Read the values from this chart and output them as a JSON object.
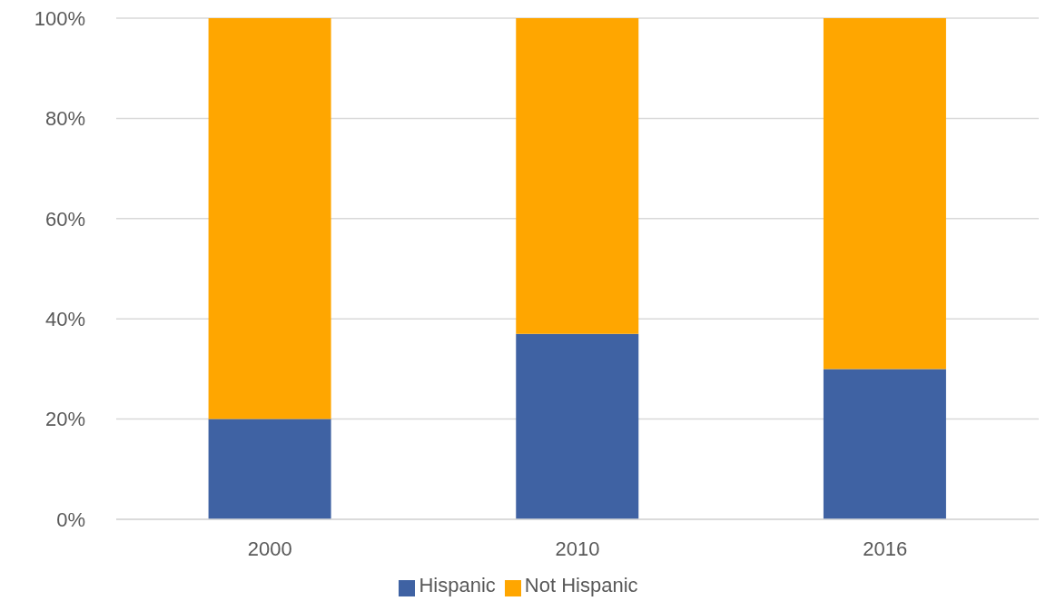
{
  "chart_data": {
    "type": "bar",
    "stacked": true,
    "categories": [
      "2000",
      "2010",
      "2016"
    ],
    "series": [
      {
        "name": "Hispanic",
        "color": "#3f62a3",
        "values": [
          20,
          37,
          30
        ]
      },
      {
        "name": "Not Hispanic",
        "color": "#ffa600",
        "values": [
          80,
          63,
          70
        ]
      }
    ],
    "ylim": [
      0,
      100
    ],
    "yticks": [
      {
        "value": 0,
        "label": "0%"
      },
      {
        "value": 20,
        "label": "20%"
      },
      {
        "value": 40,
        "label": "40%"
      },
      {
        "value": 60,
        "label": "60%"
      },
      {
        "value": 80,
        "label": "80%"
      },
      {
        "value": 100,
        "label": "100%"
      }
    ],
    "grid": "y",
    "legend": "bottom"
  }
}
